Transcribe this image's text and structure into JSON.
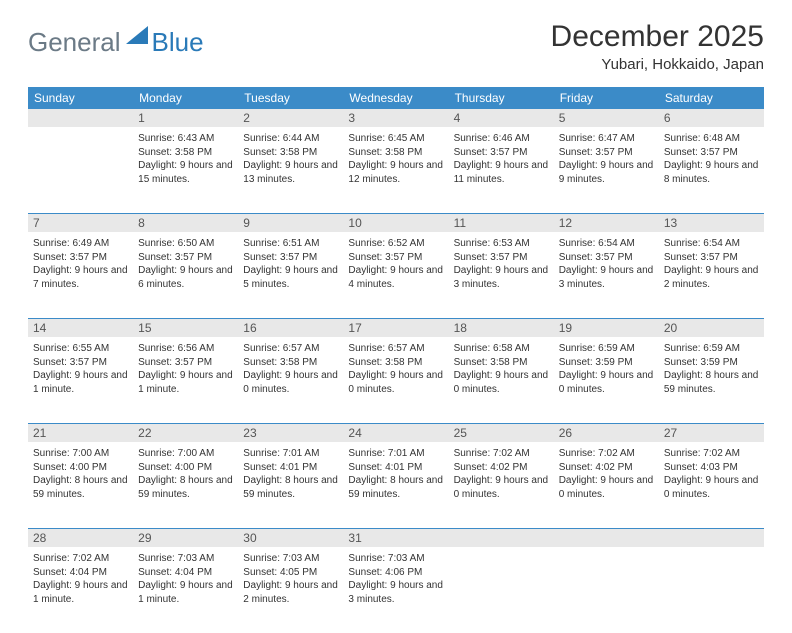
{
  "logo": {
    "text1": "General",
    "text2": "Blue"
  },
  "title": "December 2025",
  "location": "Yubari, Hokkaido, Japan",
  "day_headers": [
    "Sunday",
    "Monday",
    "Tuesday",
    "Wednesday",
    "Thursday",
    "Friday",
    "Saturday"
  ],
  "colors": {
    "header_bg": "#3b8bc8",
    "header_text": "#ffffff",
    "daynum_bg": "#e8e8e8",
    "rule": "#3b8bc8",
    "logo_gray": "#6b7a86",
    "logo_blue": "#2a7ab8"
  },
  "weeks": [
    [
      {
        "n": "",
        "sr": "",
        "ss": "",
        "dl": ""
      },
      {
        "n": "1",
        "sr": "Sunrise: 6:43 AM",
        "ss": "Sunset: 3:58 PM",
        "dl": "Daylight: 9 hours and 15 minutes."
      },
      {
        "n": "2",
        "sr": "Sunrise: 6:44 AM",
        "ss": "Sunset: 3:58 PM",
        "dl": "Daylight: 9 hours and 13 minutes."
      },
      {
        "n": "3",
        "sr": "Sunrise: 6:45 AM",
        "ss": "Sunset: 3:58 PM",
        "dl": "Daylight: 9 hours and 12 minutes."
      },
      {
        "n": "4",
        "sr": "Sunrise: 6:46 AM",
        "ss": "Sunset: 3:57 PM",
        "dl": "Daylight: 9 hours and 11 minutes."
      },
      {
        "n": "5",
        "sr": "Sunrise: 6:47 AM",
        "ss": "Sunset: 3:57 PM",
        "dl": "Daylight: 9 hours and 9 minutes."
      },
      {
        "n": "6",
        "sr": "Sunrise: 6:48 AM",
        "ss": "Sunset: 3:57 PM",
        "dl": "Daylight: 9 hours and 8 minutes."
      }
    ],
    [
      {
        "n": "7",
        "sr": "Sunrise: 6:49 AM",
        "ss": "Sunset: 3:57 PM",
        "dl": "Daylight: 9 hours and 7 minutes."
      },
      {
        "n": "8",
        "sr": "Sunrise: 6:50 AM",
        "ss": "Sunset: 3:57 PM",
        "dl": "Daylight: 9 hours and 6 minutes."
      },
      {
        "n": "9",
        "sr": "Sunrise: 6:51 AM",
        "ss": "Sunset: 3:57 PM",
        "dl": "Daylight: 9 hours and 5 minutes."
      },
      {
        "n": "10",
        "sr": "Sunrise: 6:52 AM",
        "ss": "Sunset: 3:57 PM",
        "dl": "Daylight: 9 hours and 4 minutes."
      },
      {
        "n": "11",
        "sr": "Sunrise: 6:53 AM",
        "ss": "Sunset: 3:57 PM",
        "dl": "Daylight: 9 hours and 3 minutes."
      },
      {
        "n": "12",
        "sr": "Sunrise: 6:54 AM",
        "ss": "Sunset: 3:57 PM",
        "dl": "Daylight: 9 hours and 3 minutes."
      },
      {
        "n": "13",
        "sr": "Sunrise: 6:54 AM",
        "ss": "Sunset: 3:57 PM",
        "dl": "Daylight: 9 hours and 2 minutes."
      }
    ],
    [
      {
        "n": "14",
        "sr": "Sunrise: 6:55 AM",
        "ss": "Sunset: 3:57 PM",
        "dl": "Daylight: 9 hours and 1 minute."
      },
      {
        "n": "15",
        "sr": "Sunrise: 6:56 AM",
        "ss": "Sunset: 3:57 PM",
        "dl": "Daylight: 9 hours and 1 minute."
      },
      {
        "n": "16",
        "sr": "Sunrise: 6:57 AM",
        "ss": "Sunset: 3:58 PM",
        "dl": "Daylight: 9 hours and 0 minutes."
      },
      {
        "n": "17",
        "sr": "Sunrise: 6:57 AM",
        "ss": "Sunset: 3:58 PM",
        "dl": "Daylight: 9 hours and 0 minutes."
      },
      {
        "n": "18",
        "sr": "Sunrise: 6:58 AM",
        "ss": "Sunset: 3:58 PM",
        "dl": "Daylight: 9 hours and 0 minutes."
      },
      {
        "n": "19",
        "sr": "Sunrise: 6:59 AM",
        "ss": "Sunset: 3:59 PM",
        "dl": "Daylight: 9 hours and 0 minutes."
      },
      {
        "n": "20",
        "sr": "Sunrise: 6:59 AM",
        "ss": "Sunset: 3:59 PM",
        "dl": "Daylight: 8 hours and 59 minutes."
      }
    ],
    [
      {
        "n": "21",
        "sr": "Sunrise: 7:00 AM",
        "ss": "Sunset: 4:00 PM",
        "dl": "Daylight: 8 hours and 59 minutes."
      },
      {
        "n": "22",
        "sr": "Sunrise: 7:00 AM",
        "ss": "Sunset: 4:00 PM",
        "dl": "Daylight: 8 hours and 59 minutes."
      },
      {
        "n": "23",
        "sr": "Sunrise: 7:01 AM",
        "ss": "Sunset: 4:01 PM",
        "dl": "Daylight: 8 hours and 59 minutes."
      },
      {
        "n": "24",
        "sr": "Sunrise: 7:01 AM",
        "ss": "Sunset: 4:01 PM",
        "dl": "Daylight: 8 hours and 59 minutes."
      },
      {
        "n": "25",
        "sr": "Sunrise: 7:02 AM",
        "ss": "Sunset: 4:02 PM",
        "dl": "Daylight: 9 hours and 0 minutes."
      },
      {
        "n": "26",
        "sr": "Sunrise: 7:02 AM",
        "ss": "Sunset: 4:02 PM",
        "dl": "Daylight: 9 hours and 0 minutes."
      },
      {
        "n": "27",
        "sr": "Sunrise: 7:02 AM",
        "ss": "Sunset: 4:03 PM",
        "dl": "Daylight: 9 hours and 0 minutes."
      }
    ],
    [
      {
        "n": "28",
        "sr": "Sunrise: 7:02 AM",
        "ss": "Sunset: 4:04 PM",
        "dl": "Daylight: 9 hours and 1 minute."
      },
      {
        "n": "29",
        "sr": "Sunrise: 7:03 AM",
        "ss": "Sunset: 4:04 PM",
        "dl": "Daylight: 9 hours and 1 minute."
      },
      {
        "n": "30",
        "sr": "Sunrise: 7:03 AM",
        "ss": "Sunset: 4:05 PM",
        "dl": "Daylight: 9 hours and 2 minutes."
      },
      {
        "n": "31",
        "sr": "Sunrise: 7:03 AM",
        "ss": "Sunset: 4:06 PM",
        "dl": "Daylight: 9 hours and 3 minutes."
      },
      {
        "n": "",
        "sr": "",
        "ss": "",
        "dl": ""
      },
      {
        "n": "",
        "sr": "",
        "ss": "",
        "dl": ""
      },
      {
        "n": "",
        "sr": "",
        "ss": "",
        "dl": ""
      }
    ]
  ]
}
